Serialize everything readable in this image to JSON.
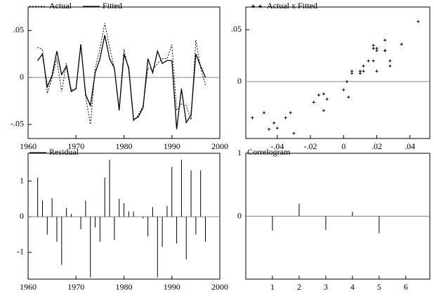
{
  "chart_data": [
    {
      "type": "line",
      "x": [
        1962,
        1963,
        1964,
        1965,
        1966,
        1967,
        1968,
        1969,
        1970,
        1971,
        1972,
        1973,
        1974,
        1975,
        1976,
        1977,
        1978,
        1979,
        1980,
        1981,
        1982,
        1983,
        1984,
        1985,
        1986,
        1987,
        1988,
        1989,
        1990,
        1991,
        1992,
        1993,
        1994,
        1995,
        1996,
        1997
      ],
      "series": [
        {
          "name": "Actual",
          "color": "#000000",
          "dash": true,
          "values": [
            0.032,
            0.03,
            -0.017,
            0.0,
            0.02,
            -0.015,
            0.015,
            -0.013,
            -0.012,
            0.036,
            -0.02,
            -0.05,
            0.01,
            0.03,
            0.058,
            0.032,
            0.01,
            -0.035,
            0.03,
            0.008,
            -0.046,
            -0.04,
            -0.03,
            0.01,
            0.008,
            0.015,
            0.02,
            0.02,
            0.035,
            -0.035,
            -0.028,
            -0.03,
            -0.045,
            0.04,
            0.01,
            -0.008
          ]
        },
        {
          "name": "Fitted",
          "color": "#000000",
          "dash": false,
          "values": [
            0.018,
            0.025,
            -0.01,
            0.002,
            0.028,
            0.003,
            0.012,
            -0.015,
            -0.012,
            0.035,
            -0.018,
            -0.03,
            0.005,
            0.02,
            0.045,
            0.02,
            0.01,
            -0.035,
            0.025,
            0.01,
            -0.045,
            -0.042,
            -0.032,
            0.02,
            0.005,
            0.028,
            0.015,
            0.018,
            0.018,
            -0.055,
            -0.012,
            -0.048,
            -0.04,
            0.025,
            0.012,
            0.0
          ]
        }
      ],
      "xlim": [
        1960,
        2000
      ],
      "xticks": [
        1960,
        1970,
        1980,
        1990,
        2000
      ],
      "ylim": [
        -0.065,
        0.075
      ],
      "yticks": [
        {
          "value": -0.05,
          "label": "-.05"
        },
        0,
        {
          "value": 0.05,
          "label": ".05"
        }
      ],
      "zero_line": true
    },
    {
      "type": "scatter",
      "series": [
        {
          "name": "Actual x Fitted",
          "color": "#000000",
          "x": [
            0.018,
            0.025,
            -0.01,
            0.002,
            0.028,
            0.003,
            0.012,
            -0.015,
            -0.012,
            0.035,
            -0.018,
            -0.03,
            0.005,
            0.02,
            0.045,
            0.02,
            0.01,
            -0.035,
            0.025,
            0.01,
            -0.045,
            -0.042,
            -0.032,
            0.02,
            0.005,
            0.028,
            0.015,
            0.018,
            0.018,
            -0.055,
            -0.012,
            -0.048,
            -0.04,
            0.025,
            0.012,
            0.0
          ],
          "values": [
            0.032,
            0.03,
            -0.017,
            0.0,
            0.02,
            -0.015,
            0.015,
            -0.013,
            -0.012,
            0.036,
            -0.02,
            -0.05,
            0.01,
            0.03,
            0.058,
            0.032,
            0.01,
            -0.035,
            0.03,
            0.008,
            -0.046,
            -0.04,
            -0.03,
            0.01,
            0.008,
            0.015,
            0.02,
            0.02,
            0.035,
            -0.035,
            -0.028,
            -0.03,
            -0.045,
            0.04,
            0.01,
            -0.008
          ]
        }
      ],
      "xlim": [
        -0.059,
        0.052
      ],
      "xticks": [
        {
          "value": -0.04,
          "label": "-.04"
        },
        {
          "value": -0.02,
          "label": "-.02"
        },
        0,
        {
          "value": 0.02,
          "label": ".02"
        },
        {
          "value": 0.04,
          "label": ".04"
        }
      ],
      "ylim": [
        -0.055,
        0.072
      ],
      "yticks": [
        0,
        {
          "value": 0.05,
          "label": ".05"
        }
      ],
      "zero_line": true
    },
    {
      "type": "spike",
      "x": [
        1962,
        1963,
        1964,
        1965,
        1966,
        1967,
        1968,
        1969,
        1970,
        1971,
        1972,
        1973,
        1974,
        1975,
        1976,
        1977,
        1978,
        1979,
        1980,
        1981,
        1982,
        1983,
        1984,
        1985,
        1986,
        1987,
        1988,
        1989,
        1990,
        1991,
        1992,
        1993,
        1994,
        1995,
        1996,
        1997
      ],
      "series": [
        {
          "name": "Residual",
          "color": "#000000",
          "values": [
            1.1,
            0.45,
            -0.5,
            0.52,
            -0.7,
            -1.35,
            0.25,
            0.08,
            0.0,
            -0.35,
            0.45,
            -1.7,
            -0.3,
            -0.7,
            1.1,
            1.6,
            -0.65,
            0.5,
            0.38,
            0.15,
            0.15,
            0.0,
            -0.05,
            -0.55,
            0.27,
            -1.7,
            -0.85,
            0.3,
            1.4,
            -0.75,
            1.6,
            -1.2,
            1.3,
            -0.5,
            1.3,
            -0.7
          ]
        }
      ],
      "xlim": [
        1960,
        2000
      ],
      "xticks": [
        1960,
        1970,
        1980,
        1990,
        2000
      ],
      "ylim": [
        -1.75,
        1.78
      ],
      "yticks": [
        -1,
        0,
        1
      ],
      "zero_line": true
    },
    {
      "type": "spike",
      "x": [
        1,
        2,
        3,
        4,
        5
      ],
      "series": [
        {
          "name": "Correlogram",
          "color": "#000000",
          "values": [
            -0.23,
            0.2,
            -0.22,
            0.07,
            -0.27
          ]
        }
      ],
      "xlim": [
        0,
        6.9
      ],
      "xticks": [
        1,
        2,
        3,
        4,
        5,
        6
      ],
      "ylim": [
        -1,
        1
      ],
      "yticks": [
        0,
        1
      ],
      "zero_line": true
    }
  ]
}
